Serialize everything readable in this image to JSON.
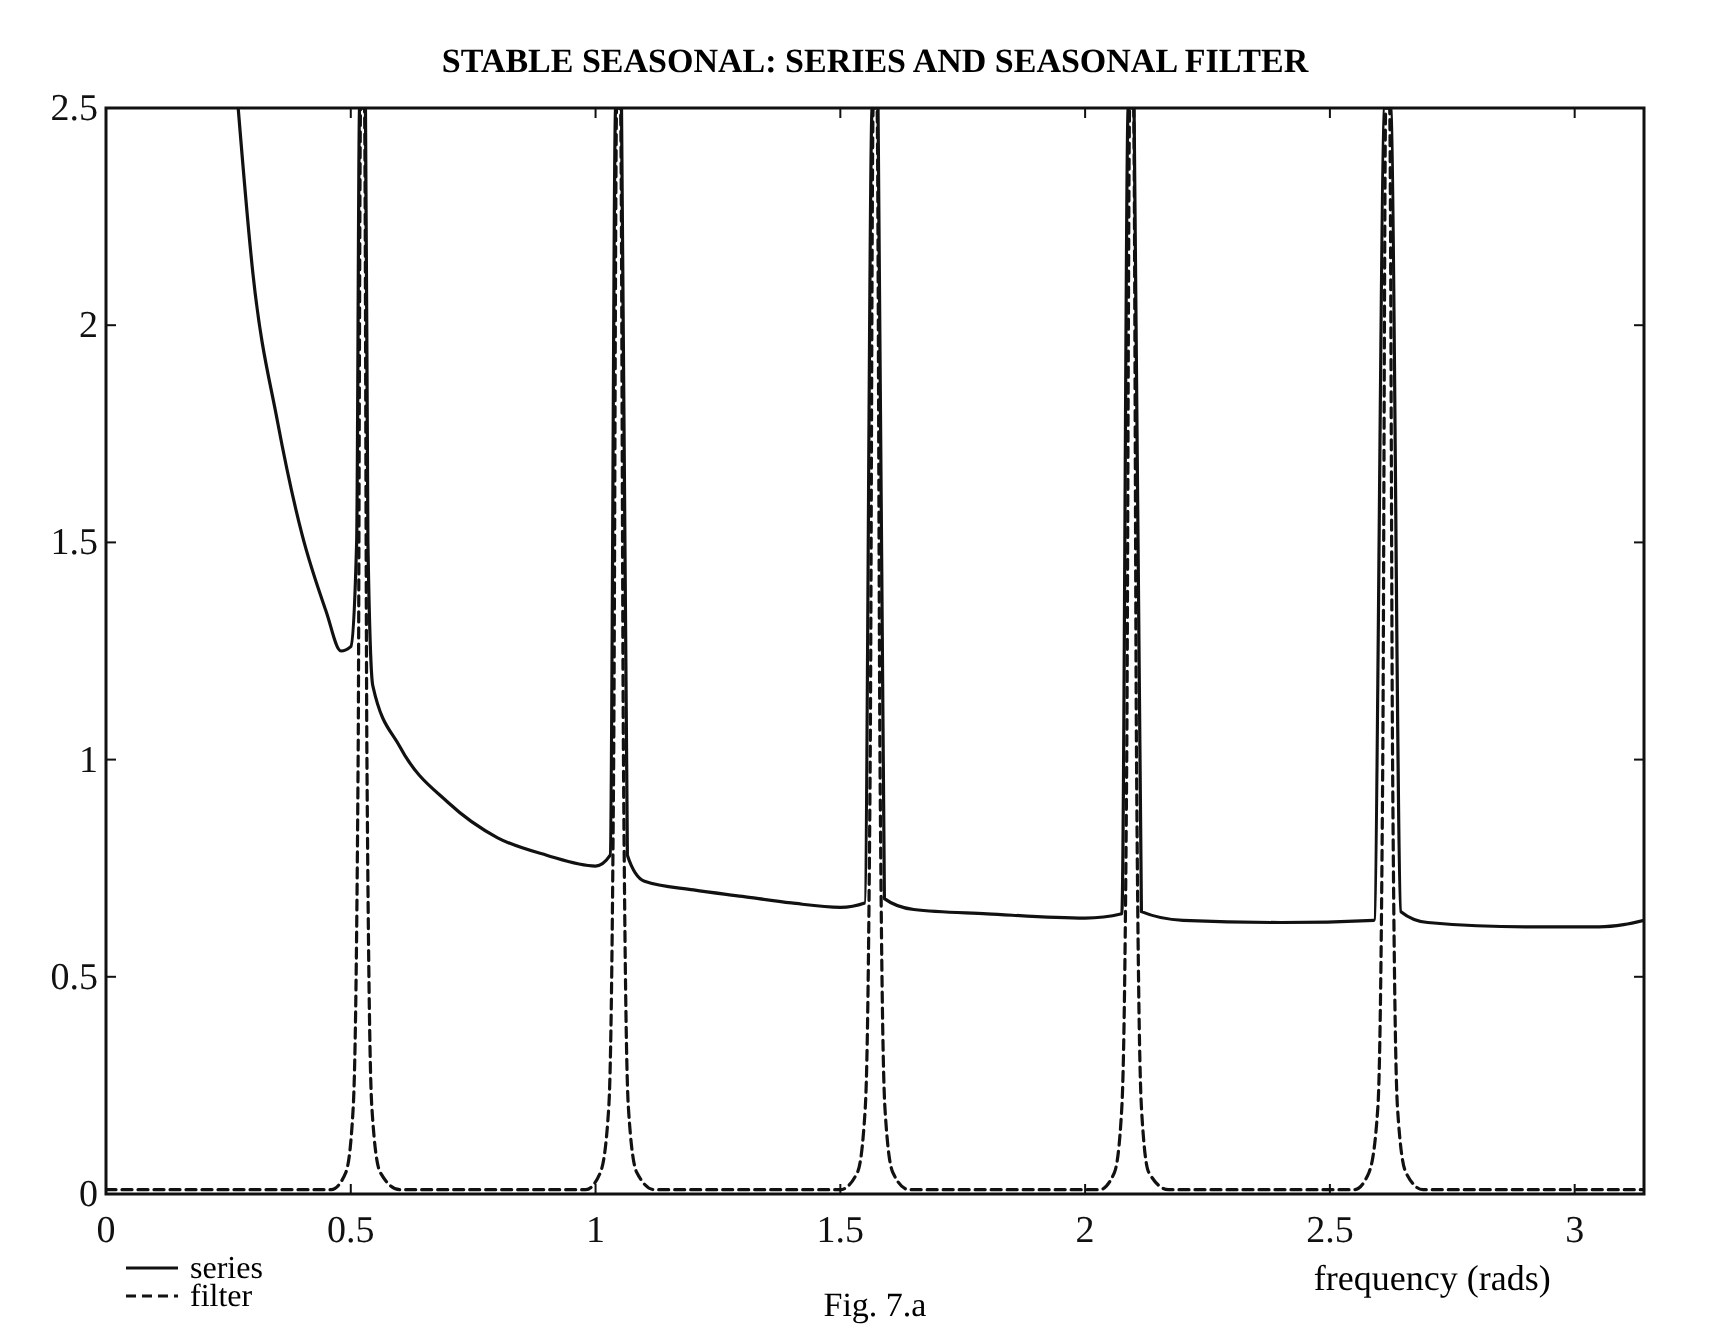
{
  "chart_data": {
    "type": "line",
    "title": "STABLE SEASONAL: SERIES AND SEASONAL FILTER",
    "xlabel": "frequency (rads)",
    "xlim": [
      0,
      3.1416
    ],
    "xticks": [
      0,
      0.5,
      1,
      1.5,
      2,
      2.5,
      3
    ],
    "ylim": [
      0,
      2.5
    ],
    "yticks": [
      0,
      0.5,
      1,
      1.5,
      2,
      2.5
    ],
    "grid": false,
    "legend": "bottom left",
    "annotations": [
      "Fig. 7.a"
    ],
    "series": [
      {
        "name": "series",
        "color": "#111111",
        "line_style": "solid",
        "x": [
          0.27,
          0.3,
          0.35,
          0.4,
          0.45,
          0.48,
          0.5,
          0.512,
          0.518,
          0.53,
          0.535,
          0.545,
          0.6,
          0.7,
          0.8,
          0.9,
          1.0,
          1.03,
          1.041,
          1.053,
          1.065,
          1.1,
          1.2,
          1.3,
          1.4,
          1.5,
          1.55,
          1.565,
          1.577,
          1.59,
          1.65,
          1.8,
          2.0,
          2.075,
          2.088,
          2.1,
          2.115,
          2.2,
          2.4,
          2.59,
          2.612,
          2.624,
          2.645,
          2.7,
          2.9,
          3.05,
          3.1,
          3.1416
        ],
        "values": [
          2.5,
          2.12,
          1.78,
          1.52,
          1.34,
          1.25,
          1.26,
          1.5,
          2.5,
          2.5,
          1.5,
          1.17,
          1.03,
          0.9,
          0.82,
          0.78,
          0.755,
          0.78,
          2.5,
          2.5,
          0.78,
          0.72,
          0.7,
          0.685,
          0.67,
          0.66,
          0.67,
          2.5,
          2.5,
          0.68,
          0.655,
          0.645,
          0.635,
          0.645,
          2.5,
          2.5,
          0.65,
          0.63,
          0.625,
          0.63,
          2.5,
          2.5,
          0.65,
          0.625,
          0.615,
          0.615,
          0.62,
          0.63
        ]
      },
      {
        "name": "filter",
        "color": "#111111",
        "line_style": "dashed",
        "x": [
          0,
          0.46,
          0.49,
          0.505,
          0.515,
          0.52,
          0.528,
          0.533,
          0.543,
          0.56,
          0.6,
          0.98,
          1.01,
          1.027,
          1.037,
          1.043,
          1.051,
          1.057,
          1.067,
          1.084,
          1.12,
          1.5,
          1.535,
          1.551,
          1.561,
          1.567,
          1.575,
          1.581,
          1.591,
          1.607,
          1.64,
          2.03,
          2.06,
          2.075,
          2.085,
          2.091,
          2.099,
          2.105,
          2.115,
          2.13,
          2.17,
          2.55,
          2.58,
          2.598,
          2.608,
          2.614,
          2.622,
          2.628,
          2.638,
          2.655,
          2.69,
          3.1416
        ],
        "values": [
          0.01,
          0.01,
          0.05,
          0.2,
          1.0,
          2.5,
          2.5,
          1.0,
          0.2,
          0.05,
          0.01,
          0.01,
          0.05,
          0.2,
          1.0,
          2.5,
          2.5,
          1.0,
          0.2,
          0.05,
          0.01,
          0.01,
          0.05,
          0.2,
          1.0,
          2.5,
          2.5,
          1.0,
          0.2,
          0.05,
          0.01,
          0.01,
          0.05,
          0.2,
          1.0,
          2.5,
          2.5,
          1.0,
          0.2,
          0.05,
          0.01,
          0.01,
          0.05,
          0.2,
          1.0,
          2.5,
          2.5,
          1.0,
          0.2,
          0.05,
          0.01,
          0.01
        ]
      }
    ]
  }
}
